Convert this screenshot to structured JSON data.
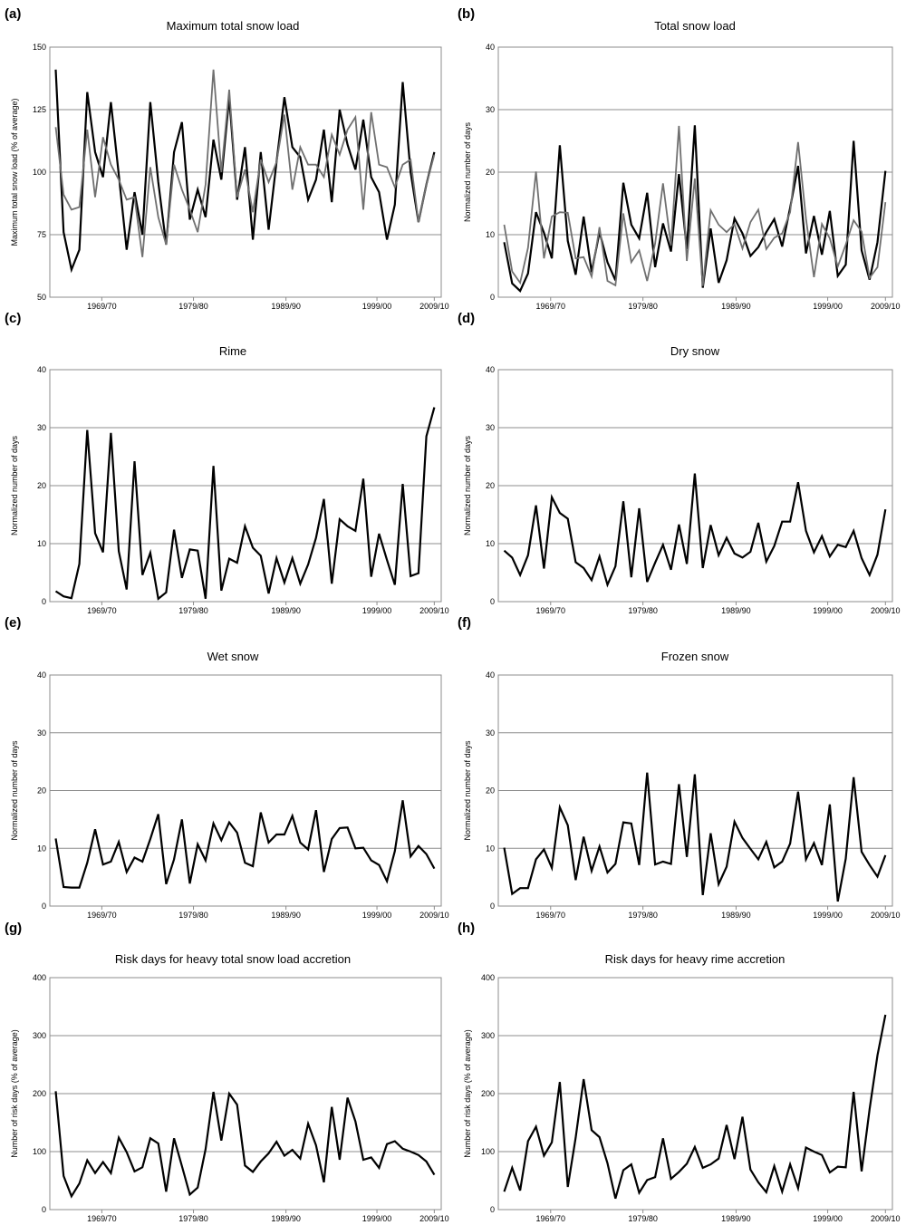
{
  "figure": {
    "description": ""
  },
  "colors": {
    "series_black": "#000000",
    "series_gray": "#707070",
    "grid": "#8c8c8c"
  },
  "chart_data": [
    {
      "panel": "(a)",
      "type": "line",
      "title": "Maximum total snow load",
      "ylabel": "Maximum total snow load (% of average)",
      "ylim": [
        50,
        150
      ],
      "yticks": [
        50,
        75,
        100,
        125,
        150
      ],
      "x_tick_labels": [
        "1969/70",
        "1979/80",
        "1989/90",
        "1999/00",
        "2009/10"
      ],
      "x_count": 50,
      "grid": true,
      "series": [
        {
          "name": "",
          "color": "#000000",
          "values": [
            141,
            76,
            61,
            69,
            132,
            108,
            98,
            128,
            99,
            69,
            92,
            75,
            128,
            96,
            71,
            108,
            120,
            81,
            93,
            82,
            113,
            97,
            130,
            89,
            110,
            73,
            108,
            77,
            104,
            130,
            110,
            106,
            89,
            97,
            117,
            88,
            125,
            111,
            101,
            121,
            98,
            92,
            73,
            87,
            136,
            100,
            80,
            95,
            108
          ]
        },
        {
          "name": "",
          "color": "#707070",
          "values": [
            118,
            91,
            85,
            86,
            117,
            90,
            114,
            103,
            97,
            89,
            90,
            66,
            102,
            82,
            71,
            103,
            93,
            85,
            76,
            95,
            141,
            100,
            133,
            90,
            101,
            84,
            105,
            96,
            104,
            123,
            93,
            110,
            103,
            103,
            98,
            115,
            107,
            117,
            122,
            85,
            124,
            103,
            102,
            94,
            103,
            105,
            80,
            95,
            107
          ]
        }
      ]
    },
    {
      "panel": "(b)",
      "type": "line",
      "title": "Total snow load",
      "ylabel": "Normalized number of days",
      "ylim": [
        0,
        40
      ],
      "yticks": [
        0,
        10,
        20,
        30,
        40
      ],
      "x_tick_labels": [
        "1969/70",
        "1979/80",
        "1989/90",
        "1999/00",
        "2009/10"
      ],
      "x_count": 50,
      "grid": true,
      "series": [
        {
          "name": "",
          "color": "#000000",
          "values": [
            8.8,
            2.2,
            1.0,
            3.8,
            13.6,
            10.3,
            6.2,
            24.3,
            9.0,
            3.6,
            12.9,
            4.0,
            10.4,
            5.6,
            2.7,
            18.3,
            11.6,
            9.4,
            16.7,
            4.8,
            11.8,
            7.3,
            19.7,
            7.7,
            27.5,
            1.5,
            11.0,
            2.3,
            5.9,
            12.6,
            10.2,
            6.6,
            8.0,
            10.4,
            12.5,
            8.1,
            14.3,
            21.0,
            7.0,
            13.0,
            6.8,
            13.8,
            3.4,
            5.2,
            25.0,
            7.5,
            2.8,
            8.8,
            20.2
          ]
        },
        {
          "name": "",
          "color": "#707070",
          "values": [
            11.6,
            4.1,
            2.3,
            7.9,
            20.1,
            6.2,
            12.9,
            13.6,
            13.5,
            6.2,
            6.4,
            3.3,
            11.2,
            2.6,
            1.9,
            13.4,
            5.6,
            7.5,
            2.6,
            8.6,
            18.2,
            8.3,
            27.4,
            5.8,
            19.0,
            1.8,
            13.9,
            11.6,
            10.4,
            11.7,
            7.8,
            12.0,
            14.0,
            7.7,
            9.5,
            10.2,
            13.6,
            24.8,
            12.6,
            3.2,
            11.7,
            9.4,
            4.9,
            8.4,
            12.3,
            10.5,
            3.1,
            4.8,
            15.2
          ]
        }
      ]
    },
    {
      "panel": "(c)",
      "type": "line",
      "title": "Rime",
      "ylabel": "Normalized number of days",
      "ylim": [
        0,
        40
      ],
      "yticks": [
        0,
        10,
        20,
        30,
        40
      ],
      "x_tick_labels": [
        "1969/70",
        "1979/80",
        "1989/90",
        "1999/00",
        "2009/10"
      ],
      "x_count": 50,
      "grid": true,
      "series": [
        {
          "name": "",
          "color": "#000000",
          "values": [
            1.8,
            0.9,
            0.6,
            6.5,
            29.6,
            11.8,
            8.5,
            29.1,
            8.7,
            2.1,
            24.2,
            4.6,
            8.4,
            0.5,
            1.6,
            12.4,
            4.1,
            9.0,
            8.8,
            0.5,
            23.4,
            1.9,
            7.4,
            6.7,
            13.0,
            9.3,
            7.9,
            1.4,
            7.5,
            3.3,
            7.5,
            3.1,
            6.4,
            11.0,
            17.7,
            3.1,
            14.2,
            13.0,
            12.2,
            21.2,
            4.3,
            11.7,
            7.2,
            2.9,
            20.3,
            4.4,
            4.9,
            28.5,
            33.5
          ]
        }
      ]
    },
    {
      "panel": "(d)",
      "type": "line",
      "title": "Dry snow",
      "ylabel": "Normalized number of days",
      "ylim": [
        0,
        40
      ],
      "yticks": [
        0,
        10,
        20,
        30,
        40
      ],
      "x_tick_labels": [
        "1969/70",
        "1979/80",
        "1989/90",
        "1999/00",
        "2009/10"
      ],
      "x_count": 50,
      "grid": true,
      "series": [
        {
          "name": "",
          "color": "#000000",
          "values": [
            8.8,
            7.6,
            4.6,
            8.0,
            16.6,
            5.7,
            18.0,
            15.3,
            14.3,
            6.8,
            5.8,
            3.7,
            7.8,
            2.9,
            6.1,
            17.3,
            4.2,
            16.1,
            3.4,
            6.7,
            9.8,
            5.5,
            13.3,
            6.5,
            22.1,
            5.8,
            13.2,
            8.0,
            11.0,
            8.3,
            7.6,
            8.6,
            13.6,
            6.9,
            9.6,
            13.8,
            13.8,
            20.6,
            12.2,
            8.5,
            11.3,
            7.8,
            9.8,
            9.4,
            12.2,
            7.5,
            4.6,
            8.1,
            15.9
          ]
        }
      ]
    },
    {
      "panel": "(e)",
      "type": "line",
      "title": "Wet snow",
      "ylabel": "Normalized number of days",
      "ylim": [
        0,
        40
      ],
      "yticks": [
        0,
        10,
        20,
        30,
        40
      ],
      "x_tick_labels": [
        "1969/70",
        "1979/80",
        "1989/90",
        "1999/00",
        "2009/10"
      ],
      "x_count": 50,
      "grid": true,
      "series": [
        {
          "name": "",
          "color": "#000000",
          "values": [
            11.7,
            3.3,
            3.2,
            3.2,
            7.5,
            13.3,
            7.2,
            7.7,
            11.1,
            5.9,
            8.4,
            7.7,
            11.6,
            15.9,
            3.8,
            8.1,
            15.0,
            3.9,
            10.7,
            7.9,
            14.3,
            11.4,
            14.5,
            12.7,
            7.5,
            6.9,
            16.2,
            11.0,
            12.4,
            12.4,
            15.6,
            11.0,
            9.8,
            16.6,
            5.9,
            11.6,
            13.5,
            13.6,
            10.0,
            10.1,
            7.9,
            7.1,
            4.3,
            9.5,
            18.3,
            8.6,
            10.4,
            9.0,
            6.5
          ]
        }
      ]
    },
    {
      "panel": "(f)",
      "type": "line",
      "title": "Frozen snow",
      "ylabel": "Normalized number of days",
      "ylim": [
        0,
        40
      ],
      "yticks": [
        0,
        10,
        20,
        30,
        40
      ],
      "x_tick_labels": [
        "1969/70",
        "1979/80",
        "1989/90",
        "1999/00",
        "2009/10"
      ],
      "x_count": 50,
      "grid": true,
      "series": [
        {
          "name": "",
          "color": "#000000",
          "values": [
            10.1,
            2.1,
            3.1,
            3.1,
            8.1,
            9.8,
            6.6,
            17.1,
            14.0,
            4.5,
            12.0,
            6.1,
            10.3,
            5.8,
            7.3,
            14.5,
            14.3,
            7.1,
            23.1,
            7.2,
            7.7,
            7.3,
            21.1,
            8.5,
            22.8,
            1.9,
            12.6,
            3.8,
            6.8,
            14.6,
            11.8,
            9.9,
            8.1,
            11.1,
            6.7,
            7.7,
            10.8,
            19.8,
            8.1,
            10.9,
            7.1,
            17.6,
            0.8,
            8.2,
            22.3,
            9.4,
            7.1,
            5.1,
            8.8
          ]
        }
      ]
    },
    {
      "panel": "(g)",
      "type": "line",
      "title": "Risk days for heavy total snow load accretion",
      "ylabel": "Number of risk days (% of average)",
      "ylim": [
        0,
        400
      ],
      "yticks": [
        0,
        100,
        200,
        300,
        400
      ],
      "x_tick_labels": [
        "1969/70",
        "1979/80",
        "1989/90",
        "1999/00",
        "2009/10"
      ],
      "x_count": 50,
      "grid": true,
      "series": [
        {
          "name": "",
          "color": "#000000",
          "values": [
            204,
            58,
            23,
            45,
            85,
            63,
            82,
            63,
            124,
            99,
            66,
            73,
            123,
            114,
            31,
            123,
            75,
            26,
            38,
            104,
            203,
            119,
            200,
            181,
            76,
            65,
            83,
            97,
            117,
            93,
            103,
            88,
            148,
            111,
            47,
            177,
            86,
            193,
            152,
            86,
            90,
            72,
            113,
            118,
            105,
            100,
            94,
            83,
            60
          ]
        }
      ]
    },
    {
      "panel": "(h)",
      "type": "line",
      "title": "Risk days for heavy rime accretion",
      "ylabel": "Number of risk days (% of average)",
      "ylim": [
        0,
        400
      ],
      "yticks": [
        0,
        100,
        200,
        300,
        400
      ],
      "x_tick_labels": [
        "1969/70",
        "1979/80",
        "1989/90",
        "1999/00",
        "2009/10"
      ],
      "x_count": 50,
      "grid": true,
      "series": [
        {
          "name": "",
          "color": "#000000",
          "values": [
            31,
            72,
            33,
            118,
            143,
            93,
            116,
            220,
            39,
            124,
            225,
            137,
            125,
            80,
            19,
            68,
            78,
            29,
            51,
            56,
            123,
            53,
            65,
            79,
            108,
            72,
            78,
            88,
            146,
            87,
            160,
            69,
            47,
            30,
            75,
            31,
            78,
            37,
            107,
            100,
            94,
            64,
            74,
            73,
            203,
            66,
            173,
            266,
            336
          ]
        }
      ]
    }
  ]
}
